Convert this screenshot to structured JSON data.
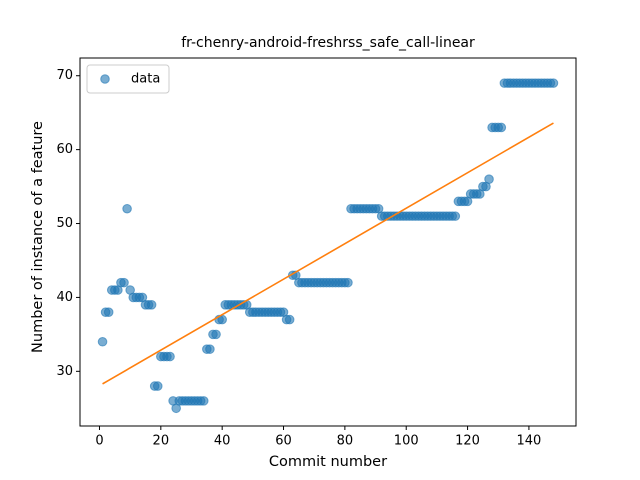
{
  "chart_data": {
    "type": "scatter",
    "title": "fr-chenry-android-freshrss_safe_call-linear",
    "xlabel": "Commit number",
    "ylabel": "Number of instance of a feature",
    "series": [
      {
        "name": "data",
        "color": "#1f77b4",
        "x": [
          1,
          2,
          3,
          4,
          5,
          6,
          7,
          8,
          9,
          10,
          11,
          12,
          13,
          14,
          15,
          16,
          17,
          18,
          19,
          20,
          21,
          22,
          23,
          24,
          25,
          26,
          27,
          28,
          29,
          30,
          31,
          32,
          33,
          34,
          35,
          36,
          37,
          38,
          39,
          40,
          41,
          42,
          43,
          44,
          45,
          46,
          47,
          48,
          49,
          50,
          51,
          52,
          53,
          54,
          55,
          56,
          57,
          58,
          59,
          60,
          61,
          62,
          63,
          64,
          65,
          66,
          67,
          68,
          69,
          70,
          71,
          72,
          73,
          74,
          75,
          76,
          77,
          78,
          79,
          80,
          81,
          82,
          83,
          84,
          85,
          86,
          87,
          88,
          89,
          90,
          91,
          92,
          93,
          94,
          95,
          96,
          97,
          98,
          99,
          100,
          101,
          102,
          103,
          104,
          105,
          106,
          107,
          108,
          109,
          110,
          111,
          112,
          113,
          114,
          115,
          116,
          117,
          118,
          119,
          120,
          121,
          122,
          123,
          124,
          125,
          126,
          127,
          128,
          129,
          130,
          131,
          132,
          133,
          134,
          135,
          136,
          137,
          138,
          139,
          140,
          141,
          142,
          143,
          144,
          145,
          146,
          147,
          148
        ],
        "values": [
          34,
          38,
          38,
          41,
          41,
          41,
          42,
          42,
          52,
          41,
          40,
          40,
          40,
          40,
          39,
          39,
          39,
          28,
          28,
          32,
          32,
          32,
          32,
          26,
          25,
          26,
          26,
          26,
          26,
          26,
          26,
          26,
          26,
          26,
          33,
          33,
          35,
          35,
          37,
          37,
          39,
          39,
          39,
          39,
          39,
          39,
          39,
          39,
          38,
          38,
          38,
          38,
          38,
          38,
          38,
          38,
          38,
          38,
          38,
          38,
          37,
          37,
          43,
          43,
          42,
          42,
          42,
          42,
          42,
          42,
          42,
          42,
          42,
          42,
          42,
          42,
          42,
          42,
          42,
          42,
          42,
          52,
          52,
          52,
          52,
          52,
          52,
          52,
          52,
          52,
          52,
          51,
          51,
          51,
          51,
          51,
          51,
          51,
          51,
          51,
          51,
          51,
          51,
          51,
          51,
          51,
          51,
          51,
          51,
          51,
          51,
          51,
          51,
          51,
          51,
          51,
          53,
          53,
          53,
          53,
          54,
          54,
          54,
          54,
          55,
          55,
          56,
          63,
          63,
          63,
          63,
          69,
          69,
          69,
          69,
          69,
          69,
          69,
          69,
          69,
          69,
          69,
          69,
          69,
          69,
          69,
          69,
          69
        ]
      },
      {
        "type": "line",
        "color": "#ff7f0e",
        "x": [
          1,
          148
        ],
        "values": [
          28.3,
          63.6
        ]
      }
    ],
    "xlim": [
      -6.35,
      155.35
    ],
    "xticks": [
      0,
      20,
      40,
      60,
      80,
      100,
      120,
      140
    ],
    "ylim": [
      22.6,
      72.4
    ],
    "yticks": [
      30,
      40,
      50,
      60,
      70
    ],
    "legend": "upper left"
  }
}
